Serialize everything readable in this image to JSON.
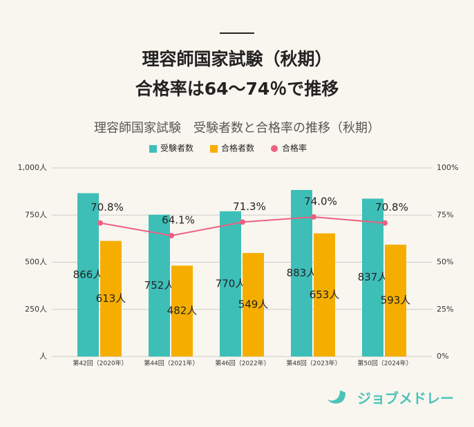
{
  "chart_data": {
    "type": "bar",
    "title": [
      "理容師国家試験（秋期）",
      "合格率は64～74％で推移"
    ],
    "subtitle": "理容師国家試験　受験者数と合格率の推移（秋期）",
    "categories": [
      "第42回（2020年）",
      "第44回（2021年）",
      "第46回（2022年）",
      "第48回（2023年）",
      "第50回（2024年）"
    ],
    "series": [
      {
        "name": "受験者数",
        "color": "#3dbfb8",
        "values": [
          866,
          752,
          770,
          883,
          837
        ],
        "value_labels": [
          "866人",
          "752人",
          "770人",
          "883人",
          "837人"
        ]
      },
      {
        "name": "合格者数",
        "color": "#f5ae00",
        "values": [
          613,
          482,
          549,
          653,
          593
        ],
        "value_labels": [
          "613人",
          "482人",
          "549人",
          "653人",
          "593人"
        ]
      },
      {
        "name": "合格率",
        "color": "#ec5f83",
        "type": "line",
        "axis": "y2",
        "values": [
          70.8,
          64.1,
          71.3,
          74.0,
          70.8
        ],
        "value_labels": [
          "70.8%",
          "64.1%",
          "71.3%",
          "74.0%",
          "70.8%"
        ]
      }
    ],
    "ylim": [
      0,
      1000
    ],
    "yticks": [
      {
        "value": 0,
        "label": "人"
      },
      {
        "value": 250,
        "label": "250人"
      },
      {
        "value": 500,
        "label": "500人"
      },
      {
        "value": 750,
        "label": "750人"
      },
      {
        "value": 1000,
        "label": "1,000人"
      }
    ],
    "y2lim": [
      0,
      100
    ],
    "y2ticks": [
      {
        "value": 0,
        "label": "0%"
      },
      {
        "value": 25,
        "label": "25%"
      },
      {
        "value": 50,
        "label": "50%"
      },
      {
        "value": 75,
        "label": "75%"
      },
      {
        "value": 100,
        "label": "100%"
      }
    ],
    "grid": true
  },
  "logo": "ジョブメドレー"
}
